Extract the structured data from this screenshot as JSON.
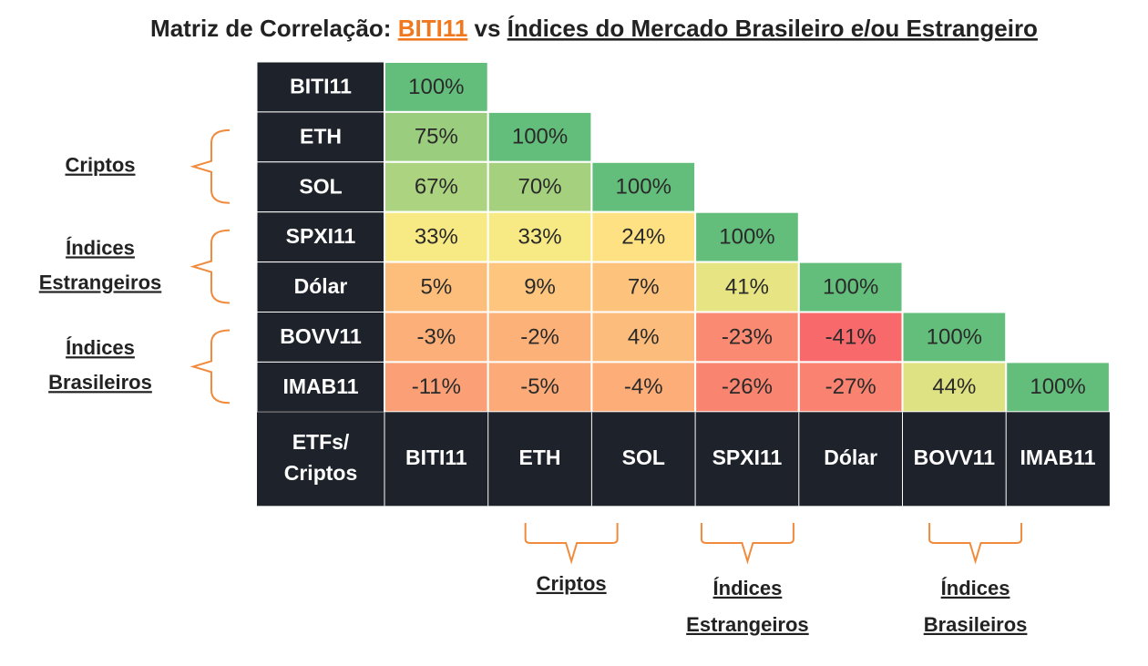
{
  "chart_data": {
    "type": "heatmap",
    "title": [
      "Matriz de Correlação:",
      "BITI11",
      "vs",
      "Índices do Mercado Brasileiro e/ou Estrangeiro"
    ],
    "corner_label": [
      "ETFs/",
      "Criptos"
    ],
    "rows": [
      "BITI11",
      "ETH",
      "SOL",
      "SPXI11",
      "Dólar",
      "BOVV11",
      "IMAB11"
    ],
    "columns": [
      "BITI11",
      "ETH",
      "SOL",
      "SPXI11",
      "Dólar",
      "BOVV11",
      "IMAB11"
    ],
    "values": [
      [
        100,
        null,
        null,
        null,
        null,
        null,
        null
      ],
      [
        75,
        100,
        null,
        null,
        null,
        null,
        null
      ],
      [
        67,
        70,
        100,
        null,
        null,
        null,
        null
      ],
      [
        33,
        33,
        24,
        100,
        null,
        null,
        null
      ],
      [
        5,
        9,
        7,
        41,
        100,
        null,
        null
      ],
      [
        -3,
        -2,
        4,
        -23,
        -41,
        100,
        null
      ],
      [
        -11,
        -5,
        -4,
        -26,
        -27,
        44,
        100
      ]
    ],
    "value_labels": [
      [
        "100%",
        null,
        null,
        null,
        null,
        null,
        null
      ],
      [
        "75%",
        "100%",
        null,
        null,
        null,
        null,
        null
      ],
      [
        "67%",
        "70%",
        "100%",
        null,
        null,
        null,
        null
      ],
      [
        "33%",
        "33%",
        "24%",
        "100%",
        null,
        null,
        null
      ],
      [
        "5%",
        "9%",
        "7%",
        "41%",
        "100%",
        null,
        null
      ],
      [
        "-3%",
        "-2%",
        "4%",
        "-23%",
        "-41%",
        "100%",
        null
      ],
      [
        "-11%",
        "-5%",
        "-4%",
        "-26%",
        "-27%",
        "44%",
        "100%"
      ]
    ],
    "colors": [
      "#f8696b",
      "#ffeb84",
      "#63be7b"
    ],
    "groups": [
      [
        "Criptos"
      ],
      [
        "Índices",
        "Estrangeiros"
      ],
      [
        "Índices",
        "Brasileiros"
      ]
    ]
  }
}
